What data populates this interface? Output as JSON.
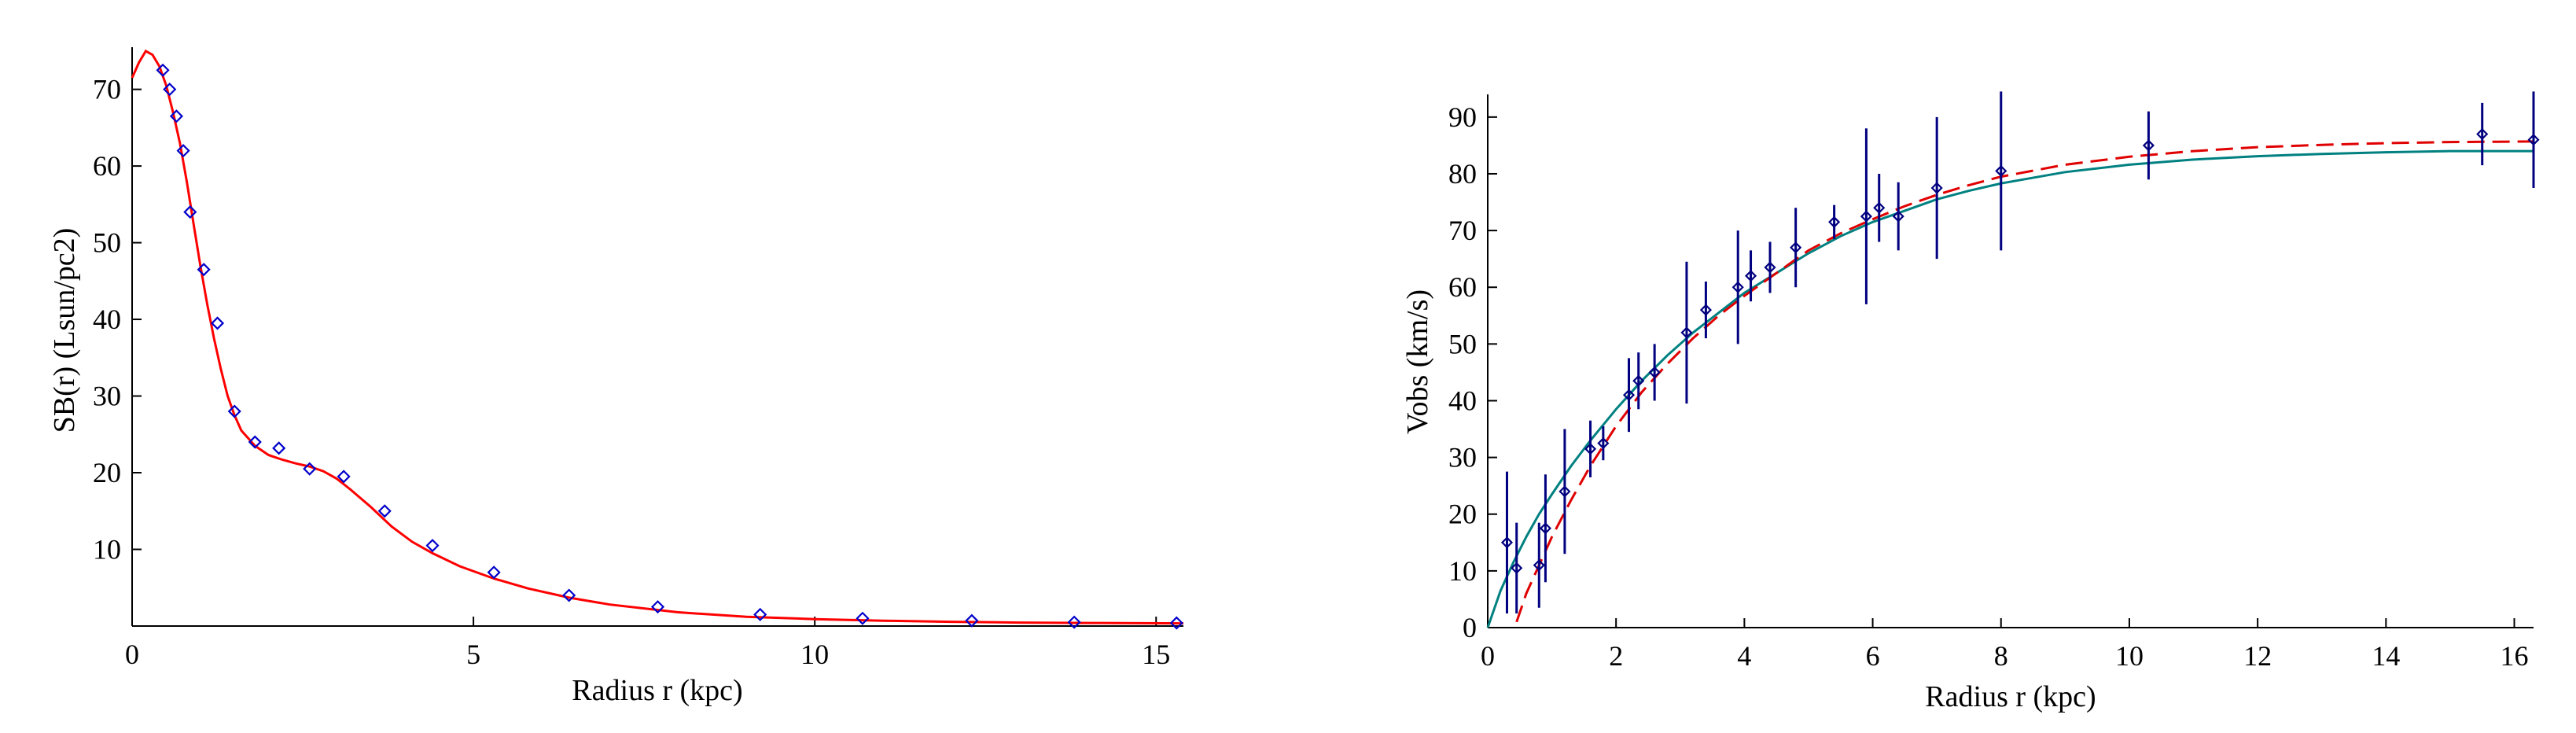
{
  "chart_data": [
    {
      "type": "scatter",
      "xlabel": "Radius  r  (kpc)",
      "ylabel": "SB(r)    (Lsun/pc2)",
      "xlim": [
        0,
        15.4
      ],
      "ylim": [
        0,
        75.5
      ],
      "xticks": [
        0,
        5,
        10,
        15
      ],
      "yticks": [
        10,
        20,
        30,
        40,
        50,
        60,
        70
      ],
      "grid": false,
      "colors": {
        "points": "#0000cc",
        "fit": "#ff0000"
      },
      "series": [
        {
          "kind": "points",
          "x": [
            0.45,
            0.55,
            0.65,
            0.75,
            0.85,
            1.05,
            1.25,
            1.5,
            1.8,
            2.15,
            2.6,
            3.1,
            3.7,
            4.4,
            5.3,
            6.4,
            7.7,
            9.2,
            10.7,
            12.3,
            13.8,
            15.3
          ],
          "y": [
            72.5,
            70,
            66.5,
            62,
            54,
            46.5,
            39.5,
            28,
            24,
            23.2,
            20.5,
            19.5,
            15,
            10.5,
            7,
            4,
            2.5,
            1.5,
            1,
            0.7,
            0.5,
            0.4
          ]
        },
        {
          "kind": "line",
          "x": [
            0,
            0.1,
            0.2,
            0.3,
            0.4,
            0.5,
            0.6,
            0.7,
            0.8,
            0.9,
            1.0,
            1.1,
            1.2,
            1.3,
            1.4,
            1.5,
            1.6,
            1.8,
            2.0,
            2.2,
            2.4,
            2.6,
            2.8,
            3.0,
            3.2,
            3.5,
            3.8,
            4.1,
            4.4,
            4.8,
            5.3,
            5.8,
            6.4,
            7.0,
            8.0,
            9.0,
            10.0,
            11.0,
            12.0,
            13.0,
            14.0,
            15.4
          ],
          "y": [
            71.5,
            73.5,
            75,
            74.5,
            73,
            70.5,
            67,
            63,
            58,
            52.5,
            47,
            42,
            37.5,
            33.5,
            30,
            27.5,
            25.5,
            23.5,
            22.3,
            21.7,
            21.2,
            20.8,
            20.2,
            19.2,
            17.8,
            15.5,
            13,
            11,
            9.5,
            7.8,
            6.2,
            4.9,
            3.7,
            2.8,
            1.8,
            1.2,
            0.9,
            0.7,
            0.55,
            0.45,
            0.4,
            0.35
          ]
        }
      ]
    },
    {
      "type": "scatter",
      "xlabel": "Radius  r  (kpc)",
      "ylabel": "Vobs  (km/s)",
      "xlim": [
        0,
        16.3
      ],
      "ylim": [
        0,
        94
      ],
      "xticks": [
        0,
        2,
        4,
        6,
        8,
        10,
        12,
        14,
        16
      ],
      "yticks": [
        0,
        10,
        20,
        30,
        40,
        50,
        60,
        70,
        80,
        90
      ],
      "grid": false,
      "colors": {
        "points": "#000080",
        "errorbars": "#000080",
        "fit_solid": "#008080",
        "fit_dashed": "#e00000"
      },
      "points": {
        "x": [
          0.3,
          0.45,
          0.8,
          0.9,
          1.2,
          1.6,
          1.8,
          2.2,
          2.35,
          2.6,
          3.1,
          3.4,
          3.9,
          4.1,
          4.4,
          4.8,
          5.4,
          5.9,
          6.1,
          6.4,
          7.0,
          8.0,
          10.3,
          15.5,
          16.3
        ],
        "y": [
          15,
          10.5,
          11,
          17.5,
          24,
          31.5,
          32.5,
          41,
          43.5,
          45,
          52,
          56,
          60,
          62,
          63.5,
          67,
          71.5,
          72.5,
          74,
          72.5,
          77.5,
          80.5,
          85,
          87,
          86
        ],
        "err": [
          12.5,
          8,
          7.5,
          9.5,
          11,
          5,
          3,
          6.5,
          5,
          5,
          12.5,
          5,
          10,
          4.5,
          4.5,
          7,
          3,
          15.5,
          6,
          6,
          12.5,
          14,
          6,
          5.5,
          8.5
        ]
      },
      "series": [
        {
          "kind": "solid",
          "x": [
            0,
            0.2,
            0.4,
            0.6,
            0.8,
            1.0,
            1.3,
            1.6,
            2.0,
            2.4,
            2.8,
            3.2,
            3.6,
            4.0,
            4.5,
            5.0,
            5.5,
            6.0,
            6.5,
            7.0,
            7.5,
            8.0,
            9.0,
            10.0,
            11.0,
            12.0,
            13.0,
            14.0,
            15.0,
            16.3
          ],
          "y": [
            0,
            6.5,
            11.5,
            16,
            20,
            23.5,
            28.5,
            33,
            38.5,
            43.5,
            48,
            52,
            55.5,
            59,
            62.5,
            66,
            69,
            71.5,
            73.5,
            75.5,
            77,
            78.3,
            80.3,
            81.6,
            82.5,
            83.1,
            83.5,
            83.8,
            84,
            84
          ]
        },
        {
          "kind": "dashed",
          "x": [
            0.45,
            0.6,
            0.8,
            1.0,
            1.3,
            1.6,
            2.0,
            2.4,
            2.8,
            3.2,
            3.6,
            4.0,
            4.5,
            5.0,
            5.5,
            6.0,
            6.5,
            7.0,
            7.5,
            8.0,
            9.0,
            10.0,
            11.0,
            12.0,
            13.0,
            14.0,
            15.0,
            16.3
          ],
          "y": [
            1,
            6,
            11,
            16,
            22.5,
            28.5,
            35.5,
            41.5,
            46.5,
            51,
            55,
            58.5,
            62.5,
            66.5,
            69.5,
            72,
            74.3,
            76.3,
            78,
            79.5,
            81.6,
            83,
            84,
            84.7,
            85.1,
            85.4,
            85.6,
            85.7
          ]
        }
      ]
    }
  ]
}
